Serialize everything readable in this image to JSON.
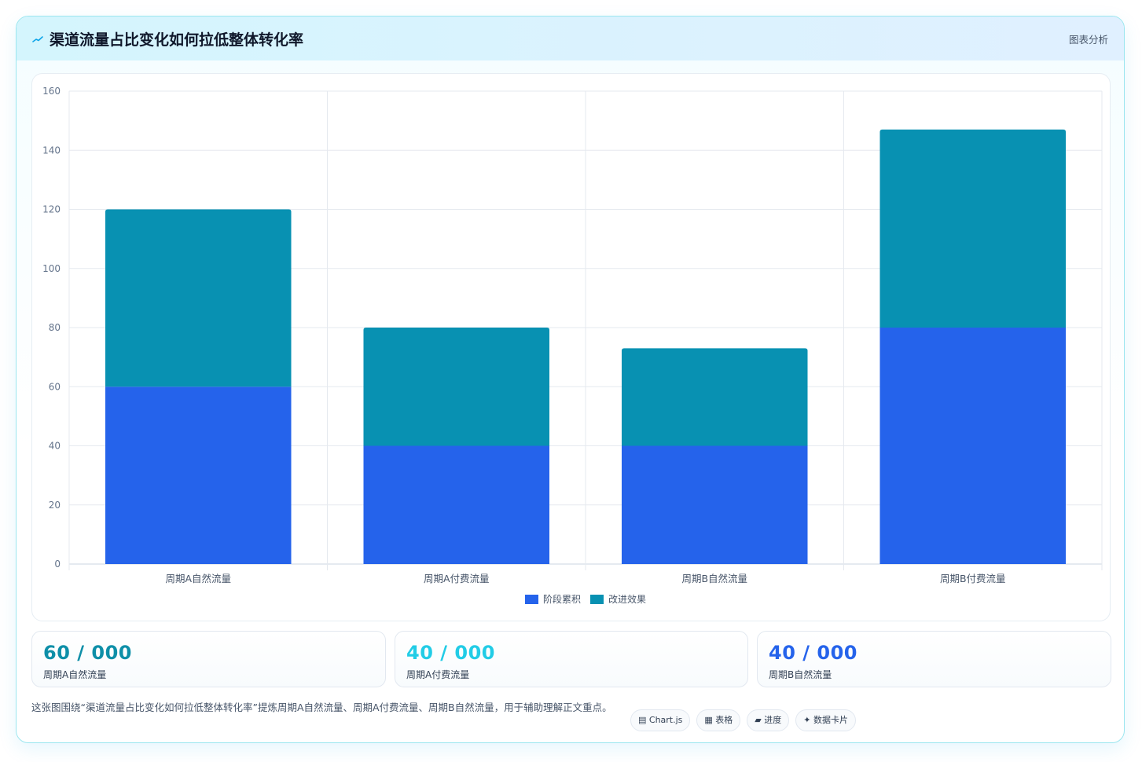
{
  "header": {
    "icon": "trend-line-icon",
    "title": "渠道流量占比变化如何拉低整体转化率",
    "action_label": "图表分析"
  },
  "colors": {
    "series_1": "#2563eb",
    "series_2": "#0891b2",
    "stat_1": "#0e8fa8",
    "stat_2": "#22cce6",
    "stat_3": "#2563eb"
  },
  "chart_data": {
    "type": "bar",
    "stacked": true,
    "categories": [
      "周期A自然流量",
      "周期A付费流量",
      "周期B自然流量",
      "周期B付费流量"
    ],
    "series": [
      {
        "name": "阶段累积",
        "values": [
          60,
          40,
          40,
          80
        ]
      },
      {
        "name": "改进效果",
        "values": [
          60,
          40,
          33,
          67
        ]
      }
    ],
    "ylim": [
      0,
      160
    ],
    "yticks": [
      0,
      20,
      40,
      60,
      80,
      100,
      120,
      140,
      160
    ],
    "grid": true,
    "legend": "bottom"
  },
  "stats": [
    {
      "value": "60 / 000",
      "label": "周期A自然流量"
    },
    {
      "value": "40 / 000",
      "label": "周期A付费流量"
    },
    {
      "value": "40 / 000",
      "label": "周期B自然流量"
    }
  ],
  "footer": {
    "description": "这张图围绕“渠道流量占比变化如何拉低整体转化率”提炼周期A自然流量、周期A付费流量、周期B自然流量，用于辅助理解正文重点。",
    "tags": [
      "▤ Chart.js",
      "▦ 表格",
      "▰ 进度",
      "✦ 数据卡片"
    ]
  }
}
